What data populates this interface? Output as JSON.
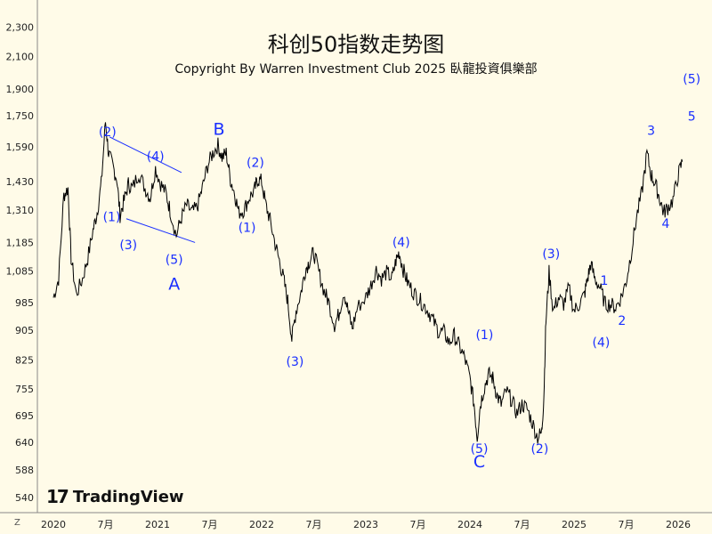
{
  "page": {
    "title": "科创50指数走势图",
    "subtitle": "Copyright By Warren Investment Club 2025 臥龍投資俱樂部",
    "logo_text": "TradingView",
    "logo_mark": "17",
    "scale_button": "Z"
  },
  "chart_data": {
    "type": "line",
    "title": "科创50指数走势图",
    "subtitle": "Copyright By Warren Investment Club 2025 臥龍投資俱樂部",
    "xlabel": "",
    "ylabel": "",
    "y_scale": "log",
    "ylim": [
      530,
      2380
    ],
    "xlim": [
      2020.0,
      2026.35
    ],
    "grid": false,
    "legend": "none",
    "line_color": "#000000",
    "annotation_color": "#1a2fff",
    "y_ticks": [
      "2,300",
      "2,100",
      "1,900",
      "1,750",
      "1,590",
      "1,430",
      "1,310",
      "1,185",
      "1,085",
      "985",
      "905",
      "825",
      "755",
      "695",
      "640",
      "588",
      "540"
    ],
    "x_ticks": [
      {
        "label": "2020",
        "x": 2020.0
      },
      {
        "label": "7月",
        "x": 2020.5
      },
      {
        "label": "2021",
        "x": 2021.0
      },
      {
        "label": "7月",
        "x": 2021.5
      },
      {
        "label": "2022",
        "x": 2022.0
      },
      {
        "label": "7月",
        "x": 2022.5
      },
      {
        "label": "2023",
        "x": 2023.0
      },
      {
        "label": "7月",
        "x": 2023.5
      },
      {
        "label": "2024",
        "x": 2024.0
      },
      {
        "label": "7月",
        "x": 2024.5
      },
      {
        "label": "2025",
        "x": 2025.0
      },
      {
        "label": "7月",
        "x": 2025.5
      },
      {
        "label": "2026",
        "x": 2026.0
      }
    ],
    "series": [
      {
        "values": [
          [
            2020.0,
            1000
          ],
          [
            2020.05,
            1060
          ],
          [
            2020.1,
            1370
          ],
          [
            2020.14,
            1400
          ],
          [
            2020.17,
            1130
          ],
          [
            2020.22,
            1010
          ],
          [
            2020.28,
            1060
          ],
          [
            2020.33,
            1130
          ],
          [
            2020.38,
            1230
          ],
          [
            2020.42,
            1300
          ],
          [
            2020.46,
            1420
          ],
          [
            2020.5,
            1720
          ],
          [
            2020.53,
            1560
          ],
          [
            2020.57,
            1500
          ],
          [
            2020.61,
            1440
          ],
          [
            2020.64,
            1290
          ],
          [
            2020.68,
            1350
          ],
          [
            2020.72,
            1420
          ],
          [
            2020.76,
            1400
          ],
          [
            2020.82,
            1470
          ],
          [
            2020.88,
            1400
          ],
          [
            2020.93,
            1360
          ],
          [
            2020.98,
            1490
          ],
          [
            2021.03,
            1420
          ],
          [
            2021.08,
            1380
          ],
          [
            2021.12,
            1310
          ],
          [
            2021.18,
            1210
          ],
          [
            2021.23,
            1280
          ],
          [
            2021.28,
            1330
          ],
          [
            2021.33,
            1300
          ],
          [
            2021.38,
            1320
          ],
          [
            2021.43,
            1400
          ],
          [
            2021.48,
            1500
          ],
          [
            2021.53,
            1560
          ],
          [
            2021.58,
            1600
          ],
          [
            2021.62,
            1540
          ],
          [
            2021.66,
            1560
          ],
          [
            2021.7,
            1440
          ],
          [
            2021.74,
            1380
          ],
          [
            2021.78,
            1300
          ],
          [
            2021.83,
            1310
          ],
          [
            2021.88,
            1360
          ],
          [
            2021.93,
            1390
          ],
          [
            2021.96,
            1440
          ],
          [
            2022.0,
            1430
          ],
          [
            2022.04,
            1330
          ],
          [
            2022.08,
            1270
          ],
          [
            2022.13,
            1180
          ],
          [
            2022.17,
            1120
          ],
          [
            2022.21,
            1060
          ],
          [
            2022.25,
            990
          ],
          [
            2022.29,
            880
          ],
          [
            2022.33,
            960
          ],
          [
            2022.38,
            1020
          ],
          [
            2022.42,
            1090
          ],
          [
            2022.46,
            1120
          ],
          [
            2022.5,
            1150
          ],
          [
            2022.55,
            1080
          ],
          [
            2022.6,
            1020
          ],
          [
            2022.64,
            990
          ],
          [
            2022.7,
            920
          ],
          [
            2022.74,
            950
          ],
          [
            2022.79,
            1020
          ],
          [
            2022.83,
            960
          ],
          [
            2022.87,
            910
          ],
          [
            2022.92,
            970
          ],
          [
            2023.0,
            1000
          ],
          [
            2023.05,
            1040
          ],
          [
            2023.1,
            1090
          ],
          [
            2023.15,
            1060
          ],
          [
            2023.2,
            1080
          ],
          [
            2023.25,
            1060
          ],
          [
            2023.29,
            1120
          ],
          [
            2023.32,
            1150
          ],
          [
            2023.36,
            1090
          ],
          [
            2023.4,
            1050
          ],
          [
            2023.45,
            1020
          ],
          [
            2023.5,
            1000
          ],
          [
            2023.55,
            980
          ],
          [
            2023.6,
            960
          ],
          [
            2023.65,
            930
          ],
          [
            2023.7,
            900
          ],
          [
            2023.75,
            900
          ],
          [
            2023.8,
            870
          ],
          [
            2023.85,
            890
          ],
          [
            2023.9,
            860
          ],
          [
            2023.95,
            830
          ],
          [
            2024.0,
            780
          ],
          [
            2024.04,
            720
          ],
          [
            2024.07,
            650
          ],
          [
            2024.1,
            720
          ],
          [
            2024.14,
            760
          ],
          [
            2024.18,
            790
          ],
          [
            2024.22,
            780
          ],
          [
            2024.26,
            740
          ],
          [
            2024.3,
            720
          ],
          [
            2024.35,
            750
          ],
          [
            2024.4,
            730
          ],
          [
            2024.45,
            700
          ],
          [
            2024.5,
            720
          ],
          [
            2024.55,
            710
          ],
          [
            2024.6,
            680
          ],
          [
            2024.65,
            650
          ],
          [
            2024.69,
            660
          ],
          [
            2024.71,
            740
          ],
          [
            2024.73,
            930
          ],
          [
            2024.76,
            1080
          ],
          [
            2024.8,
            960
          ],
          [
            2024.85,
            1000
          ],
          [
            2024.9,
            980
          ],
          [
            2024.95,
            1030
          ],
          [
            2025.0,
            960
          ],
          [
            2025.05,
            980
          ],
          [
            2025.1,
            1010
          ],
          [
            2025.13,
            1060
          ],
          [
            2025.16,
            1110
          ],
          [
            2025.2,
            1060
          ],
          [
            2025.25,
            1030
          ],
          [
            2025.3,
            980
          ],
          [
            2025.35,
            980
          ],
          [
            2025.4,
            970
          ],
          [
            2025.45,
            1000
          ],
          [
            2025.5,
            1050
          ],
          [
            2025.55,
            1150
          ],
          [
            2025.6,
            1280
          ],
          [
            2025.65,
            1380
          ],
          [
            2025.7,
            1560
          ],
          [
            2025.74,
            1460
          ],
          [
            2025.78,
            1420
          ],
          [
            2025.82,
            1360
          ],
          [
            2025.86,
            1300
          ],
          [
            2025.9,
            1320
          ],
          [
            2025.95,
            1350
          ],
          [
            2026.0,
            1460
          ],
          [
            2026.04,
            1520
          ]
        ]
      }
    ],
    "annotations": [
      {
        "text": "(2)",
        "x": 2020.52,
        "y": 1645
      },
      {
        "text": "(4)",
        "x": 2020.98,
        "y": 1525
      },
      {
        "text": "(1)",
        "x": 2020.56,
        "y": 1265
      },
      {
        "text": "(3)",
        "x": 2020.72,
        "y": 1160
      },
      {
        "text": "(5)",
        "x": 2021.16,
        "y": 1110
      },
      {
        "text": "A",
        "x": 2021.16,
        "y": 1025
      },
      {
        "text": "B",
        "x": 2021.59,
        "y": 1650
      },
      {
        "text": "(2)",
        "x": 2021.94,
        "y": 1495
      },
      {
        "text": "(1)",
        "x": 2021.86,
        "y": 1225
      },
      {
        "text": "(3)",
        "x": 2022.32,
        "y": 810
      },
      {
        "text": "(4)",
        "x": 2023.34,
        "y": 1170
      },
      {
        "text": "(1)",
        "x": 2024.14,
        "y": 880
      },
      {
        "text": "(5)",
        "x": 2024.09,
        "y": 620
      },
      {
        "text": "C",
        "x": 2024.09,
        "y": 593
      },
      {
        "text": "(2)",
        "x": 2024.67,
        "y": 620
      },
      {
        "text": "(3)",
        "x": 2024.78,
        "y": 1130
      },
      {
        "text": "(4)",
        "x": 2025.26,
        "y": 860
      },
      {
        "text": "1",
        "x": 2025.29,
        "y": 1040
      },
      {
        "text": "2",
        "x": 2025.46,
        "y": 920
      },
      {
        "text": "3",
        "x": 2025.74,
        "y": 1650
      },
      {
        "text": "4",
        "x": 2025.88,
        "y": 1240
      },
      {
        "text": "5",
        "x": 2026.13,
        "y": 1725
      },
      {
        "text": "(5)",
        "x": 2026.13,
        "y": 1935
      }
    ],
    "trendlines": [
      {
        "from": [
          2020.54,
          1640
        ],
        "to": [
          2021.23,
          1470
        ]
      },
      {
        "from": [
          2020.7,
          1275
        ],
        "to": [
          2021.36,
          1185
        ]
      }
    ]
  }
}
